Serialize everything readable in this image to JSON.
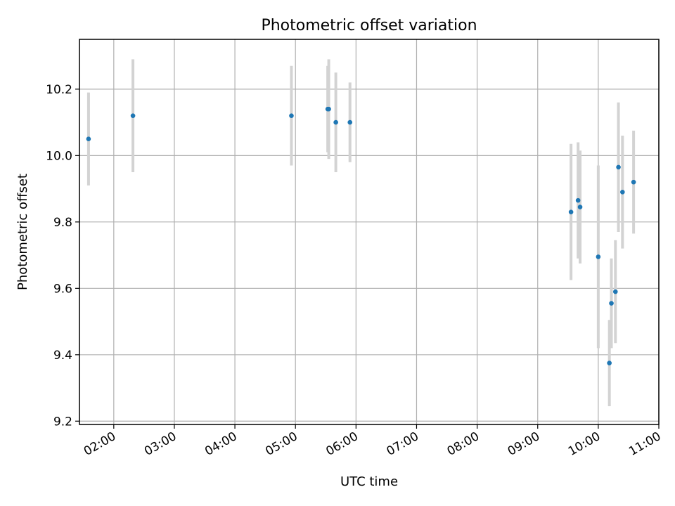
{
  "chart_data": {
    "type": "scatter",
    "title": "Photometric offset variation",
    "xlabel": "UTC time",
    "ylabel": "Photometric offset",
    "x_ticks": [
      "02:00",
      "03:00",
      "04:00",
      "05:00",
      "06:00",
      "07:00",
      "08:00",
      "09:00",
      "10:00",
      "11:00"
    ],
    "y_ticks": [
      "9.2",
      "9.4",
      "9.6",
      "9.8",
      "10.0",
      "10.2"
    ],
    "xlim": [
      "01:26",
      "11:00"
    ],
    "ylim": [
      9.19,
      10.35
    ],
    "grid": true,
    "point_color": "#1f77b4",
    "errorbar_color": "#d3d3d3",
    "points": [
      {
        "x": "01:35",
        "y": 10.05,
        "err": 0.14
      },
      {
        "x": "02:19",
        "y": 10.12,
        "err": 0.17
      },
      {
        "x": "04:56",
        "y": 10.12,
        "err": 0.15
      },
      {
        "x": "05:32",
        "y": 10.14,
        "err": 0.13
      },
      {
        "x": "05:33",
        "y": 10.14,
        "err": 0.15
      },
      {
        "x": "05:40",
        "y": 10.1,
        "err": 0.15
      },
      {
        "x": "05:54",
        "y": 10.1,
        "err": 0.12
      },
      {
        "x": "09:33",
        "y": 9.83,
        "err": 0.205
      },
      {
        "x": "09:40",
        "y": 9.865,
        "err": 0.175
      },
      {
        "x": "09:42",
        "y": 9.845,
        "err": 0.17
      },
      {
        "x": "10:00",
        "y": 9.695,
        "err": 0.275
      },
      {
        "x": "10:11",
        "y": 9.375,
        "err": 0.13
      },
      {
        "x": "10:13",
        "y": 9.555,
        "err": 0.135
      },
      {
        "x": "10:17",
        "y": 9.59,
        "err": 0.155
      },
      {
        "x": "10:20",
        "y": 9.965,
        "err": 0.195
      },
      {
        "x": "10:24",
        "y": 9.89,
        "err": 0.17
      },
      {
        "x": "10:35",
        "y": 9.92,
        "err": 0.155
      }
    ]
  }
}
